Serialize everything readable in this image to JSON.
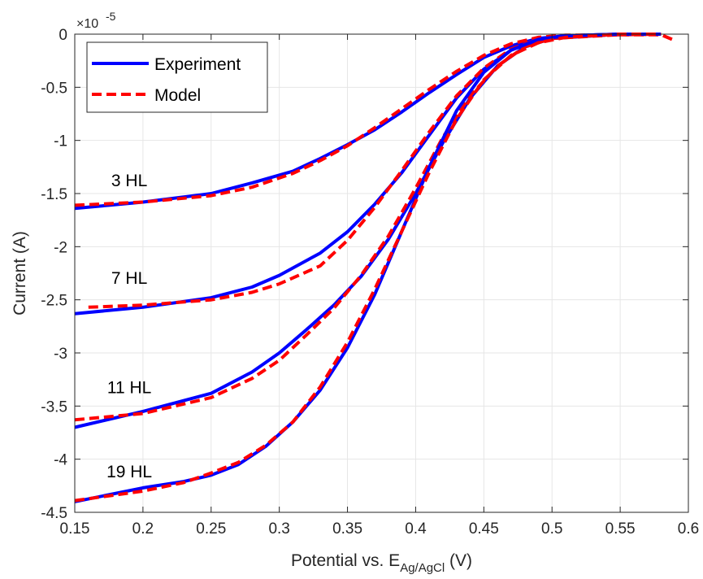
{
  "chart_data": {
    "type": "line",
    "title": "",
    "xlabel": "Potential vs. E",
    "xlabel_subscript": "Ag/AgCl",
    "xlabel_suffix": " (V)",
    "ylabel": "Current (A)",
    "y_exponent_base": "×10",
    "y_exponent_power": "-5",
    "xlim": [
      0.15,
      0.6
    ],
    "ylim": [
      -4.5,
      0
    ],
    "x_ticks": [
      "0.15",
      "0.2",
      "0.25",
      "0.3",
      "0.35",
      "0.4",
      "0.45",
      "0.5",
      "0.55",
      "0.6"
    ],
    "y_ticks": [
      "0",
      "-0.5",
      "-1",
      "-1.5",
      "-2",
      "-2.5",
      "-3",
      "-3.5",
      "-4",
      "-4.5"
    ],
    "grid": true,
    "legend_position": "top-left",
    "colors": {
      "experiment": "#0000ff",
      "model": "#ff0000"
    },
    "legend": [
      {
        "label": "Experiment",
        "style": "solid"
      },
      {
        "label": "Model",
        "style": "dashed"
      }
    ],
    "annotations": [
      {
        "text": "3 HL",
        "x": 0.19,
        "y": -1.43
      },
      {
        "text": "7 HL",
        "x": 0.19,
        "y": -2.35
      },
      {
        "text": "11 HL",
        "x": 0.19,
        "y": -3.38
      },
      {
        "text": "19 HL",
        "x": 0.19,
        "y": -4.17
      }
    ],
    "series": [
      {
        "name": "3 HL Experiment",
        "group": "experiment",
        "x": [
          0.15,
          0.2,
          0.25,
          0.28,
          0.31,
          0.33,
          0.35,
          0.37,
          0.39,
          0.41,
          0.43,
          0.45,
          0.47,
          0.49,
          0.51,
          0.55,
          0.58
        ],
        "y": [
          -1.64,
          -1.58,
          -1.5,
          -1.4,
          -1.29,
          -1.17,
          -1.04,
          -0.9,
          -0.73,
          -0.55,
          -0.38,
          -0.22,
          -0.11,
          -0.04,
          -0.015,
          0,
          0
        ]
      },
      {
        "name": "3 HL Model",
        "group": "model",
        "x": [
          0.15,
          0.2,
          0.25,
          0.28,
          0.31,
          0.33,
          0.35,
          0.37,
          0.39,
          0.41,
          0.43,
          0.45,
          0.47,
          0.49,
          0.51,
          0.55,
          0.58,
          0.59
        ],
        "y": [
          -1.61,
          -1.58,
          -1.52,
          -1.44,
          -1.31,
          -1.19,
          -1.05,
          -0.88,
          -0.7,
          -0.52,
          -0.35,
          -0.2,
          -0.09,
          -0.03,
          -0.01,
          -0.005,
          -0.005,
          -0.06
        ]
      },
      {
        "name": "7 HL Experiment",
        "group": "experiment",
        "x": [
          0.15,
          0.2,
          0.25,
          0.28,
          0.3,
          0.33,
          0.35,
          0.37,
          0.39,
          0.41,
          0.43,
          0.45,
          0.47,
          0.49,
          0.51,
          0.55,
          0.58
        ],
        "y": [
          -2.63,
          -2.57,
          -2.48,
          -2.38,
          -2.27,
          -2.06,
          -1.86,
          -1.6,
          -1.3,
          -0.95,
          -0.6,
          -0.33,
          -0.15,
          -0.05,
          -0.015,
          0,
          0
        ]
      },
      {
        "name": "7 HL Model",
        "group": "model",
        "x": [
          0.16,
          0.2,
          0.25,
          0.28,
          0.3,
          0.33,
          0.35,
          0.37,
          0.39,
          0.41,
          0.43,
          0.45,
          0.47,
          0.49,
          0.51,
          0.55,
          0.58
        ],
        "y": [
          -2.57,
          -2.55,
          -2.5,
          -2.43,
          -2.35,
          -2.18,
          -1.94,
          -1.63,
          -1.28,
          -0.92,
          -0.58,
          -0.32,
          -0.14,
          -0.05,
          -0.02,
          -0.005,
          0
        ]
      },
      {
        "name": "11 HL Experiment",
        "group": "experiment",
        "x": [
          0.15,
          0.2,
          0.25,
          0.28,
          0.3,
          0.32,
          0.34,
          0.36,
          0.38,
          0.4,
          0.42,
          0.44,
          0.46,
          0.48,
          0.5,
          0.55,
          0.58
        ],
        "y": [
          -3.7,
          -3.55,
          -3.38,
          -3.18,
          -3.0,
          -2.78,
          -2.55,
          -2.28,
          -1.93,
          -1.5,
          -1.02,
          -0.6,
          -0.3,
          -0.12,
          -0.04,
          0,
          0
        ]
      },
      {
        "name": "11 HL Model",
        "group": "model",
        "x": [
          0.15,
          0.2,
          0.25,
          0.28,
          0.3,
          0.32,
          0.34,
          0.36,
          0.38,
          0.4,
          0.42,
          0.44,
          0.46,
          0.48,
          0.5,
          0.55,
          0.58
        ],
        "y": [
          -3.63,
          -3.57,
          -3.42,
          -3.24,
          -3.07,
          -2.83,
          -2.58,
          -2.27,
          -1.9,
          -1.45,
          -0.97,
          -0.58,
          -0.3,
          -0.12,
          -0.04,
          -0.005,
          0
        ]
      },
      {
        "name": "19 HL Experiment",
        "group": "experiment",
        "x": [
          0.15,
          0.2,
          0.23,
          0.25,
          0.27,
          0.29,
          0.31,
          0.33,
          0.35,
          0.37,
          0.39,
          0.41,
          0.43,
          0.45,
          0.47,
          0.49,
          0.51,
          0.55,
          0.58
        ],
        "y": [
          -4.4,
          -4.27,
          -4.21,
          -4.15,
          -4.05,
          -3.88,
          -3.65,
          -3.35,
          -2.95,
          -2.45,
          -1.85,
          -1.25,
          -0.72,
          -0.36,
          -0.15,
          -0.05,
          -0.015,
          0,
          0
        ]
      },
      {
        "name": "19 HL Model",
        "group": "model",
        "x": [
          0.15,
          0.2,
          0.23,
          0.25,
          0.27,
          0.29,
          0.31,
          0.33,
          0.35,
          0.37,
          0.39,
          0.41,
          0.43,
          0.45,
          0.47,
          0.49,
          0.51,
          0.55,
          0.58
        ],
        "y": [
          -4.39,
          -4.3,
          -4.22,
          -4.13,
          -4.03,
          -3.87,
          -3.65,
          -3.32,
          -2.9,
          -2.4,
          -1.85,
          -1.3,
          -0.8,
          -0.43,
          -0.2,
          -0.08,
          -0.03,
          0,
          0
        ]
      }
    ]
  }
}
